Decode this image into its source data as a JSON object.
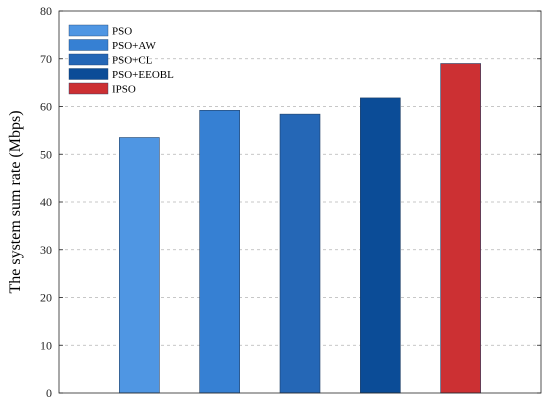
{
  "chart_data": {
    "type": "bar",
    "title": "",
    "xlabel": "",
    "ylabel": "The system sum rate (Mbps)",
    "ylim": [
      0,
      80
    ],
    "yticks": [
      0,
      10,
      20,
      30,
      40,
      50,
      60,
      70,
      80
    ],
    "grid": "horizontal-dashed",
    "legend_position": "top-left",
    "series": [
      {
        "name": "PSO",
        "value": 53.5,
        "color": "#4f96e3"
      },
      {
        "name": "PSO+AW",
        "value": 59.2,
        "color": "#3680d3"
      },
      {
        "name": "PSO+CL",
        "value": 58.4,
        "color": "#2567b6"
      },
      {
        "name": "PSO+EEOBL",
        "value": 61.8,
        "color": "#0b4c97"
      },
      {
        "name": "IPSO",
        "value": 69.0,
        "color": "#cc3033"
      }
    ]
  }
}
